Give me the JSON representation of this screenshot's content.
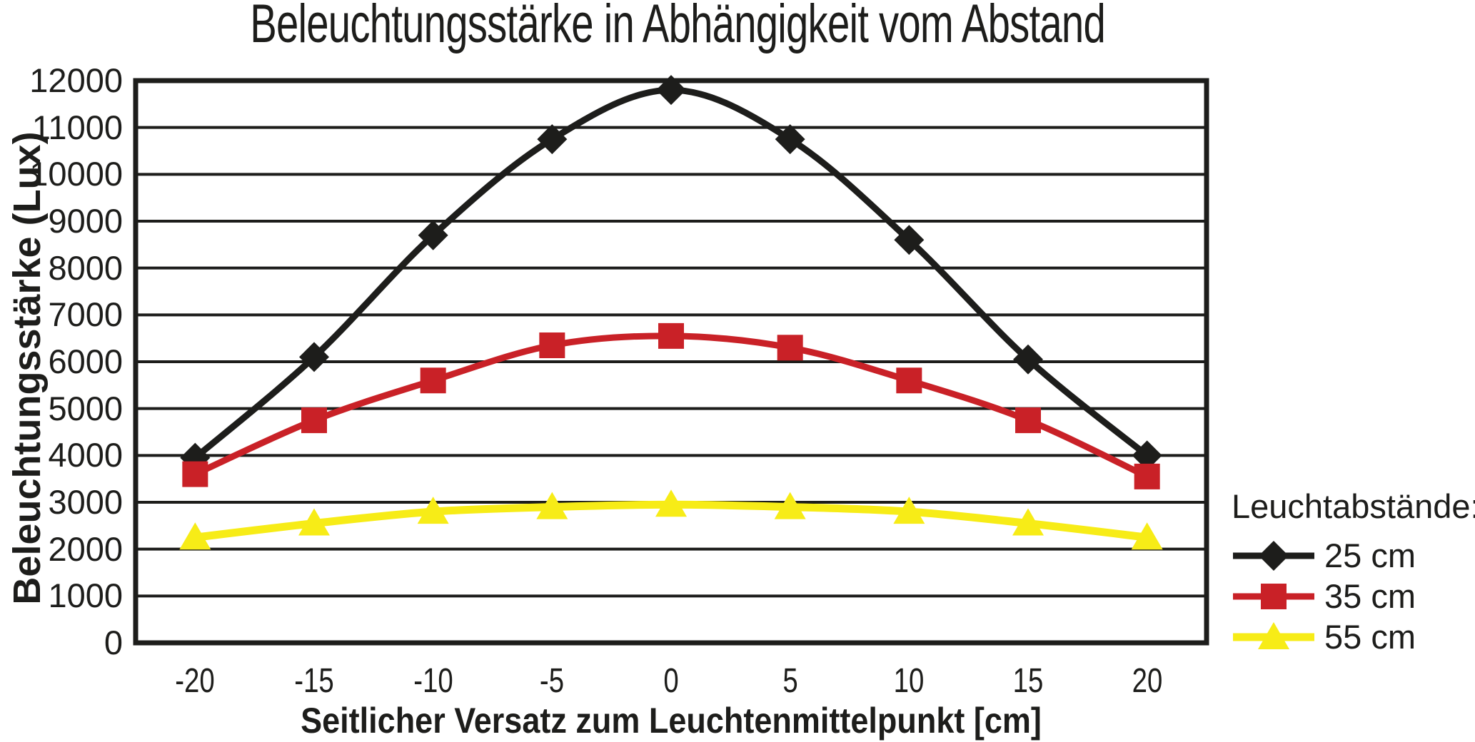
{
  "chart_data": {
    "type": "line",
    "title": "Beleuchtungsstärke in Abhängigkeit vom Abstand",
    "xlabel": "Seitlicher Versatz zum Leuchtenmittelpunkt [cm]",
    "ylabel": "Beleuchtungsstärke (Lux)",
    "x": [
      -20,
      -15,
      -10,
      -5,
      0,
      5,
      10,
      15,
      20
    ],
    "x_tick_labels": [
      "-20",
      "-15",
      "-10",
      "-5",
      "0",
      "5",
      "10",
      "15",
      "20"
    ],
    "ylim": [
      0,
      12000
    ],
    "y_tick_interval": 1000,
    "y_tick_labels": [
      "0",
      "1000",
      "2000",
      "3000",
      "4000",
      "5000",
      "6000",
      "7000",
      "8000",
      "9000",
      "10000",
      "11000",
      "12000"
    ],
    "grid": "horizontal",
    "legend_position": "right",
    "legend_title": "Leuchtabstände:",
    "axis_color": "#1d1d1b",
    "series": [
      {
        "name": "25 cm",
        "color": "#1d1d1b",
        "marker": "diamond",
        "line_width": 9,
        "values": [
          3950,
          6100,
          8700,
          10750,
          11800,
          10750,
          8600,
          6050,
          4000
        ]
      },
      {
        "name": "35 cm",
        "color": "#c92127",
        "marker": "square",
        "line_width": 9,
        "values": [
          3600,
          4750,
          5600,
          6350,
          6550,
          6300,
          5600,
          4750,
          3550
        ]
      },
      {
        "name": "55 cm",
        "color": "#f7ec17",
        "marker": "triangle",
        "line_width": 11,
        "values": [
          2250,
          2550,
          2800,
          2900,
          2950,
          2900,
          2800,
          2550,
          2250
        ]
      }
    ]
  }
}
